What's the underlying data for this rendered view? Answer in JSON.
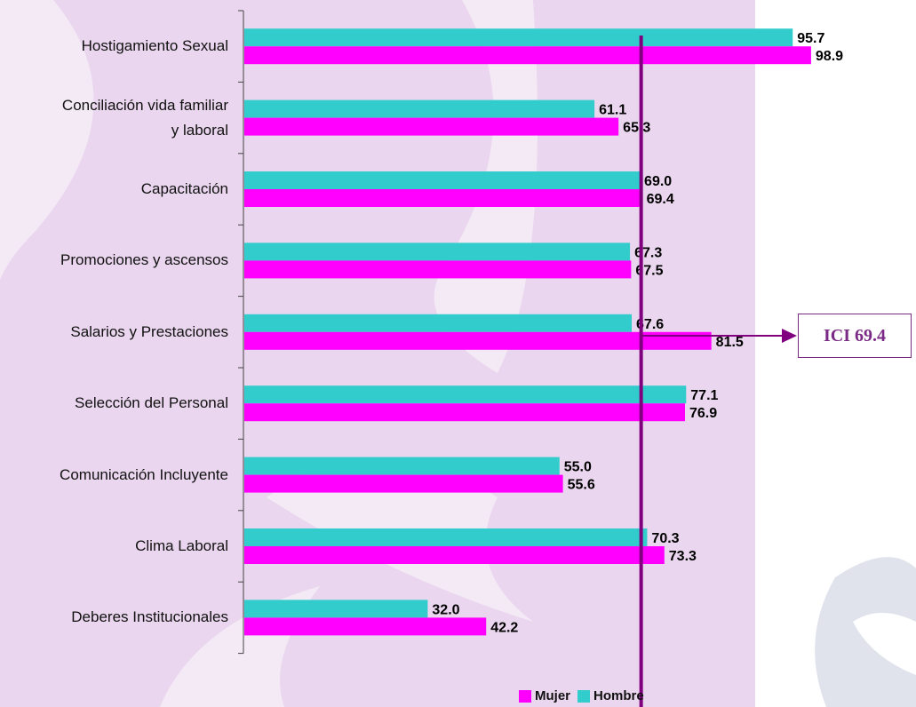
{
  "chart_data": {
    "type": "bar",
    "orientation": "horizontal",
    "categories": [
      "Hostigamiento Sexual",
      "Conciliación vida familiar y laboral",
      "Capacitación",
      "Promociones y ascensos",
      "Salarios y Prestaciones",
      "Selección del Personal",
      "Comunicación Incluyente",
      "Clima Laboral",
      "Deberes Institucionales"
    ],
    "category_lines": [
      [
        "Hostigamiento Sexual"
      ],
      [
        "Conciliación vida familiar",
        "y laboral"
      ],
      [
        "Capacitación"
      ],
      [
        "Promociones y ascensos"
      ],
      [
        "Salarios y Prestaciones"
      ],
      [
        "Selección del Personal"
      ],
      [
        "Comunicación Incluyente"
      ],
      [
        "Clima Laboral"
      ],
      [
        "Deberes Institucionales"
      ]
    ],
    "series": [
      {
        "name": "Hombre",
        "color": "#33cccc",
        "values": [
          95.7,
          61.1,
          69.0,
          67.3,
          67.6,
          77.1,
          55.0,
          70.3,
          32.0
        ],
        "labels": [
          "95.7",
          "61.1",
          "69.0",
          "67.3",
          "67.6",
          "77.1",
          "55.0",
          "70.3",
          "32.0"
        ]
      },
      {
        "name": "Mujer",
        "color": "#ff00ff",
        "values": [
          98.9,
          65.3,
          69.4,
          67.5,
          81.5,
          76.9,
          55.6,
          73.3,
          42.2
        ],
        "labels": [
          "98.9",
          "65.3",
          "69.4",
          "67.5",
          "81.5",
          "76.9",
          "55.6",
          "73.3",
          "42.2"
        ]
      }
    ],
    "reference_line": {
      "value": 69.4,
      "label": "ICI 69.4",
      "color": "#800080"
    },
    "xlim": [
      0,
      100
    ],
    "grid": false,
    "legend": {
      "position": "bottom",
      "order": [
        "Mujer",
        "Hombre"
      ]
    }
  }
}
